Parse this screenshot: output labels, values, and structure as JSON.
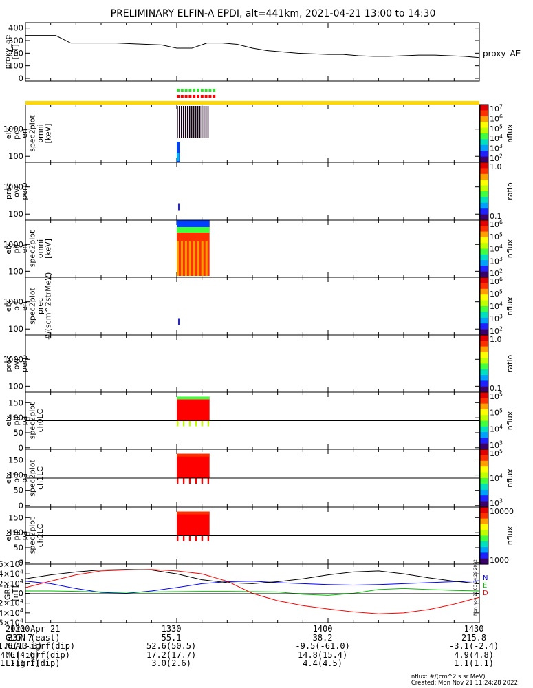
{
  "title": "PRELIMINARY ELFIN-A EPDI, alt=441km, 2021-04-21 13:00 to 14:30",
  "chart_data": [
    {
      "type": "line",
      "panel": "proxy_ae",
      "ylabel": [
        "proxy_ae",
        "[nT]"
      ],
      "legend": "proxy_AE",
      "yticks": [
        "0",
        "100",
        "200",
        "300",
        "400"
      ],
      "ylim": [
        0,
        420
      ],
      "x": [
        0,
        3,
        6,
        9,
        12,
        15,
        18,
        21,
        24,
        27,
        30,
        33,
        36,
        39,
        42,
        45,
        48,
        51,
        54,
        57,
        60,
        63,
        66,
        69,
        72,
        75,
        78,
        81,
        84,
        87,
        90
      ],
      "values": [
        340,
        340,
        340,
        280,
        280,
        280,
        280,
        275,
        270,
        265,
        240,
        240,
        280,
        280,
        270,
        240,
        220,
        210,
        200,
        195,
        190,
        190,
        180,
        175,
        175,
        180,
        185,
        185,
        180,
        175,
        165
      ]
    },
    {
      "type": "heatmap",
      "panel": "elx_pef_en_spec2plot_omni",
      "ylabel": [
        "elx",
        "pef",
        "en",
        "spec2plot",
        "omni",
        "[keV]"
      ],
      "yticks": [
        "100",
        "1000"
      ],
      "colorbar": {
        "label": "nflux",
        "ticks": [
          "10^2",
          "10^3",
          "10^4",
          "10^5",
          "10^6",
          "10^7"
        ]
      }
    },
    {
      "type": "heatmap",
      "panel": "prec_ovr_perp_pef",
      "ylabel": [
        "prec",
        "ovr",
        "perp"
      ],
      "yticks": [
        "100",
        "1000"
      ],
      "colorbar": {
        "label": "ratio",
        "ticks": [
          "0.1",
          "1.0"
        ]
      }
    },
    {
      "type": "heatmap",
      "panel": "elx_pif_en_spec2plot_omni",
      "ylabel": [
        "elx",
        "pif",
        "en",
        "spec2plot",
        "omni",
        "[keV]"
      ],
      "yticks": [
        "100",
        "1000"
      ],
      "colorbar": {
        "label": "nflux",
        "ticks": [
          "10^2",
          "10^3",
          "10^4",
          "10^5",
          "10^6"
        ]
      }
    },
    {
      "type": "heatmap",
      "panel": "elx_pif_en_spec2plot_prec",
      "ylabel": [
        "elx",
        "pif",
        "en",
        "spec2plot",
        "prec",
        "#/(scm^2strMeV)"
      ],
      "yticks": [
        "100",
        "1000"
      ],
      "colorbar": {
        "label": "nflux",
        "ticks": [
          "10^2",
          "10^3",
          "10^4",
          "10^5",
          "10^6"
        ]
      }
    },
    {
      "type": "heatmap",
      "panel": "prec_ovr_perp_pif",
      "ylabel": [
        "prec",
        "ovr",
        "perp"
      ],
      "yticks": [
        "100",
        "1000"
      ],
      "colorbar": {
        "label": "ratio",
        "ticks": [
          "0.1",
          "1.0"
        ]
      }
    },
    {
      "type": "heatmap",
      "panel": "elx_pif_pa_spec2plot_ch0LC",
      "ylabel": [
        "elx",
        "pif",
        "pa",
        "spec2plot",
        "ch0LC"
      ],
      "yticks": [
        "0",
        "50",
        "100",
        "150"
      ],
      "colorbar": {
        "label": "nflux",
        "ticks": [
          "10^3",
          "10^4",
          "10^5",
          "10^5"
        ]
      }
    },
    {
      "type": "heatmap",
      "panel": "elx_pif_pa_spec2plot_ch1LC",
      "ylabel": [
        "elx",
        "pif",
        "pa",
        "spec2plot",
        "ch1LC"
      ],
      "yticks": [
        "0",
        "50",
        "100",
        "150"
      ],
      "colorbar": {
        "label": "nflux",
        "ticks": [
          "10^3",
          "10^4",
          "10^5"
        ]
      }
    },
    {
      "type": "heatmap",
      "panel": "elx_pif_pa_spec2plot_ch2LC",
      "ylabel": [
        "elx",
        "pif",
        "pa",
        "spec2plot",
        "ch2LC"
      ],
      "yticks": [
        "0",
        "50",
        "100",
        "150"
      ],
      "colorbar": {
        "label": "nflux",
        "ticks": [
          "1000",
          "10000"
        ]
      }
    },
    {
      "type": "line",
      "panel": "IGRF",
      "ylabel": [
        "IGRF",
        "[nT]"
      ],
      "yticks": [
        "-6x10^4",
        "-4x10^4",
        "-2x10^4",
        "0",
        "2x10^4",
        "4x10^4",
        "6x10^4"
      ],
      "ylim": [
        -60000,
        60000
      ],
      "legend": [
        "N",
        "E",
        "D"
      ],
      "x": [
        0,
        5,
        10,
        15,
        20,
        25,
        30,
        35,
        40,
        45,
        50,
        55,
        60,
        65,
        70,
        75,
        80,
        85,
        90
      ],
      "series": [
        {
          "name": "N",
          "color": "#0000ff",
          "values": [
            25000,
            20000,
            10000,
            2000,
            0,
            5000,
            12000,
            20000,
            24000,
            25000,
            22000,
            20000,
            18000,
            17000,
            18000,
            20000,
            22000,
            24000,
            26000
          ]
        },
        {
          "name": "E",
          "color": "#00c000",
          "values": [
            5000,
            5000,
            4000,
            3000,
            2500,
            3000,
            3500,
            4000,
            4000,
            3500,
            3000,
            -2000,
            -4000,
            0,
            8000,
            10000,
            8000,
            6000,
            5000
          ]
        },
        {
          "name": "D",
          "color": "#ff0000",
          "values": [
            12000,
            25000,
            38000,
            46000,
            48000,
            49000,
            46000,
            40000,
            25000,
            0,
            -15000,
            -25000,
            -32000,
            -38000,
            -42000,
            -40000,
            -33000,
            -22000,
            -8000
          ]
        },
        {
          "name": "",
          "color": "#000000",
          "values": [
            30000,
            38000,
            44000,
            48000,
            49000,
            48000,
            40000,
            28000,
            22000,
            20000,
            24000,
            30000,
            38000,
            44000,
            46000,
            40000,
            32000,
            25000,
            20000
          ]
        }
      ]
    }
  ],
  "sidebar_stamp": "Mon Nov 21 03:24:29 2022",
  "footer": {
    "rows": [
      {
        "label": "2021 Apr 21",
        "v": [
          "1300",
          "1330",
          "1400",
          "1430"
        ]
      },
      {
        "label": "GLON (east)",
        "v": [
          "237.7",
          "55.1",
          "38.2",
          "215.8"
        ]
      },
      {
        "label": "MLAT-igrf(dip)",
        "v": [
          "1.6(13.3)",
          "52.6(50.5)",
          "-9.5(-61.0)",
          "-3.1(-2.4)"
        ]
      },
      {
        "label": "MLT-igrf(dip)",
        "v": [
          "4.6(4.6)",
          "17.2(17.7)",
          "14.8(15.4)",
          "4.9(4.8)"
        ]
      },
      {
        "label": "L-igrf(dip)",
        "v": [
          "1.1(1.1)",
          "3.0(2.6)",
          "4.4(4.5)",
          "1.1(1.1)"
        ]
      }
    ],
    "units": "nflux: #/(cm^2 s sr MeV)",
    "created": "Created: Mon Nov 21 11:24:28 2022"
  }
}
